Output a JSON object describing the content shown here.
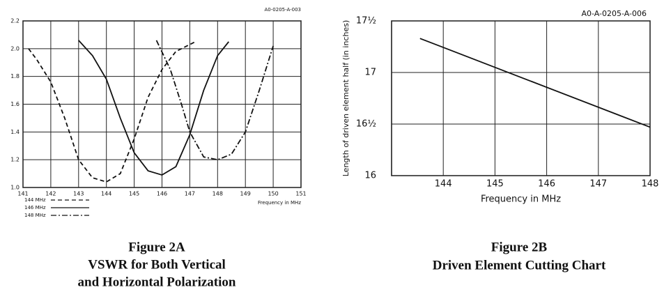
{
  "chart_data": [
    {
      "type": "line",
      "annotation": "A0-0205-A-003",
      "x_label": "Frequency in MHz",
      "caption": [
        "Figure 2A",
        "VSWR for Both Vertical",
        "and Horizontal Polarization"
      ],
      "xlim": [
        141,
        151
      ],
      "xticks": [
        141,
        142,
        143,
        144,
        145,
        146,
        147,
        148,
        149,
        150,
        151
      ],
      "ylim": [
        1,
        2.2
      ],
      "yticks": [
        {
          "value": 1,
          "label": "1.0"
        },
        1.2,
        1.4,
        1.6,
        1.8,
        {
          "value": 2,
          "label": "2.0"
        },
        2.2
      ],
      "grid": true,
      "series": [
        {
          "name": "144 MHz",
          "color": "#111111",
          "dash": "6 4",
          "x": [
            141.2,
            141.5,
            142,
            142.5,
            143,
            143.5,
            144,
            144.5,
            145,
            145.5,
            146,
            146.5,
            147.2
          ],
          "values": [
            2.0,
            1.92,
            1.76,
            1.5,
            1.2,
            1.07,
            1.04,
            1.1,
            1.35,
            1.65,
            1.85,
            1.98,
            2.05
          ]
        },
        {
          "name": "146 MHz",
          "color": "#111111",
          "dash": "none",
          "x": [
            143,
            143.5,
            144,
            144.5,
            145,
            145.5,
            146,
            146.5,
            147,
            147.5,
            148,
            148.4
          ],
          "values": [
            2.06,
            1.95,
            1.78,
            1.5,
            1.25,
            1.12,
            1.09,
            1.15,
            1.38,
            1.7,
            1.95,
            2.05
          ]
        },
        {
          "name": "148 MHz",
          "color": "#111111",
          "dash": "8 3 2 3",
          "x": [
            145.8,
            146.3,
            146.7,
            147,
            147.5,
            148,
            148.5,
            149,
            149.5,
            150
          ],
          "values": [
            2.06,
            1.85,
            1.6,
            1.4,
            1.22,
            1.2,
            1.24,
            1.4,
            1.7,
            2.02
          ]
        }
      ]
    },
    {
      "type": "line",
      "annotation": "A0-A-0205-A-006",
      "x_label": "Frequency in MHz",
      "y_label": "Length of driven element half (in inches)",
      "caption": [
        "Figure 2B",
        "Driven Element Cutting Chart"
      ],
      "xlim": [
        143,
        148
      ],
      "xticks": [
        144,
        145,
        146,
        147,
        148
      ],
      "ylim": [
        16,
        17.5
      ],
      "yticks": [
        16,
        {
          "value": 16.5,
          "label": "16½"
        },
        17,
        {
          "value": 17.5,
          "label": "17½"
        }
      ],
      "grid": true,
      "series": [
        {
          "color": "#111111",
          "dash": "none",
          "x": [
            143.55,
            148
          ],
          "values": [
            17.33,
            16.47
          ]
        }
      ]
    }
  ]
}
